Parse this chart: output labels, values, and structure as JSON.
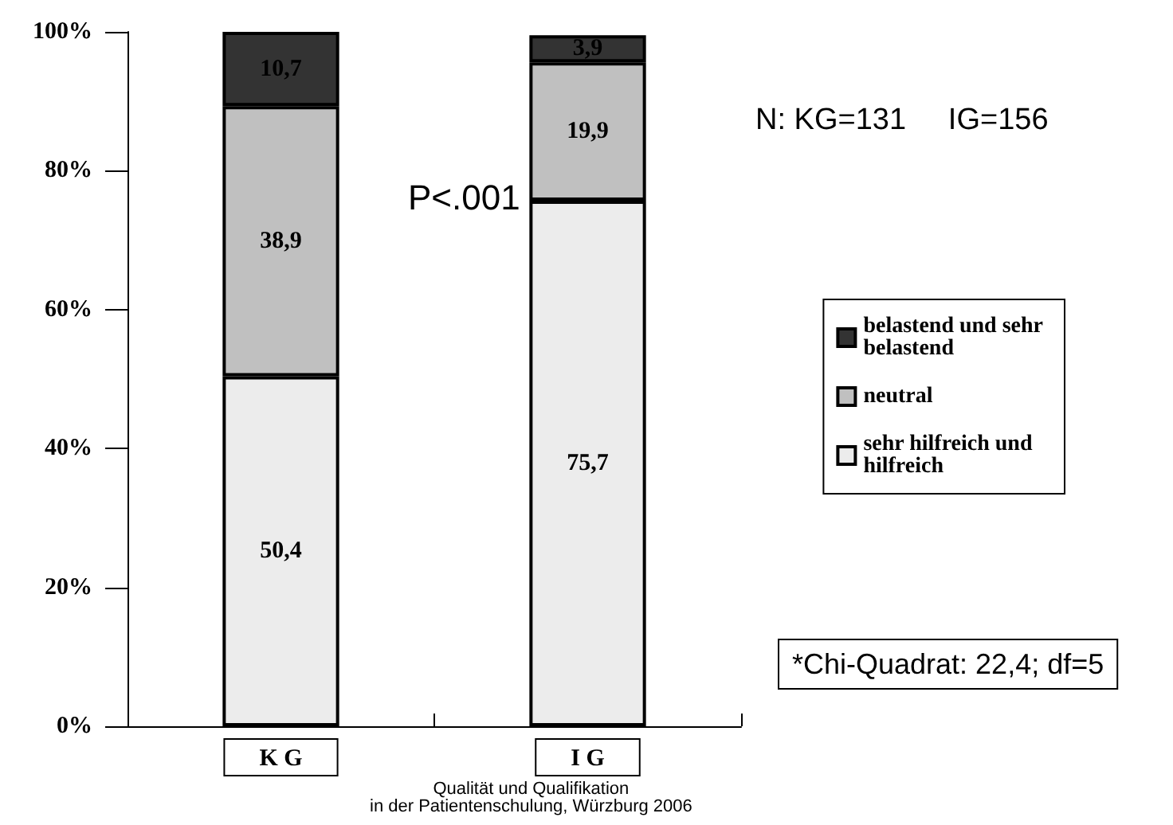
{
  "chart_data": {
    "type": "bar",
    "stacked": true,
    "categories": [
      "K G",
      "I G"
    ],
    "series": [
      {
        "name": "sehr hilfreich und hilfreich",
        "color": "#ececec",
        "values": [
          50.4,
          75.7
        ],
        "value_labels": [
          "50,4",
          "75,7"
        ]
      },
      {
        "name": "neutral",
        "color": "#c0c0c0",
        "values": [
          38.9,
          19.9
        ],
        "value_labels": [
          "38,9",
          "19,9"
        ]
      },
      {
        "name": "belastend und sehr belastend",
        "color": "#333333",
        "values": [
          10.7,
          3.9
        ],
        "value_labels": [
          "10,7",
          "3,9"
        ]
      }
    ],
    "ylim": [
      0,
      100
    ],
    "yticks": [
      {
        "value": 0,
        "label": "0%"
      },
      {
        "value": 20,
        "label": "20%"
      },
      {
        "value": 40,
        "label": "40%"
      },
      {
        "value": 60,
        "label": "60%"
      },
      {
        "value": 80,
        "label": "80%"
      },
      {
        "value": 100,
        "label": "100%"
      }
    ],
    "grid": false,
    "legend": "right",
    "annotations": [
      "P<.001",
      "N: KG=131     IG=156",
      "*Chi-Quadrat: 22,4; df=5",
      "Qualität und Qualifikation\nin der Patientenschulung, Würzburg 2006"
    ]
  }
}
